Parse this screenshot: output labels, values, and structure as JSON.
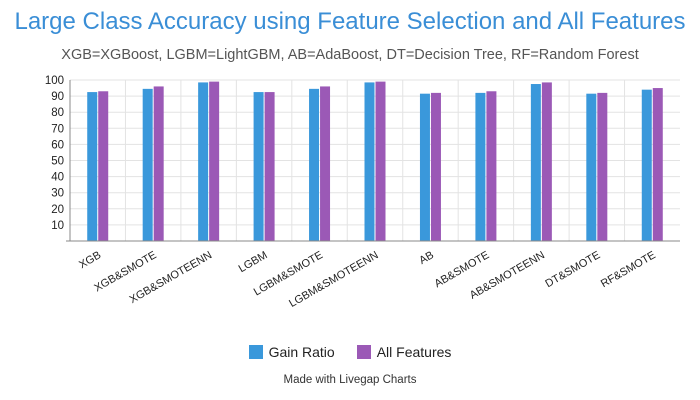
{
  "chart_data": {
    "type": "bar",
    "title": "Large Class Accuracy using Feature Selection and All Features",
    "subtitle": "XGB=XGBoost, LGBM=LightGBM, AB=AdaBoost, DT=Decision Tree, RF=Random Forest",
    "categories": [
      "XGB",
      "XGB&SMOTE",
      "XGB&SMOTEENN",
      "LGBM",
      "LGBM&SMOTE",
      "LGBM&SMOTEENN",
      "AB",
      "AB&SMOTE",
      "AB&SMOTEENN",
      "DT&SMOTE",
      "RF&SMOTE"
    ],
    "series": [
      {
        "name": "Gain Ratio",
        "color": "#3a98db",
        "values": [
          92.5,
          94.5,
          98.5,
          92.5,
          94.5,
          98.5,
          91.5,
          92,
          97.5,
          91.5,
          94
        ]
      },
      {
        "name": "All Features",
        "color": "#9b59b6",
        "values": [
          93,
          96,
          99,
          92.5,
          96,
          99,
          92,
          93,
          98.5,
          92,
          95
        ]
      }
    ],
    "yticks": [
      10,
      20,
      30,
      40,
      50,
      60,
      70,
      80,
      90,
      100
    ],
    "ylim": [
      0,
      100
    ],
    "grid": true,
    "legend_position": "bottom"
  },
  "credit": "Made with Livegap Charts"
}
